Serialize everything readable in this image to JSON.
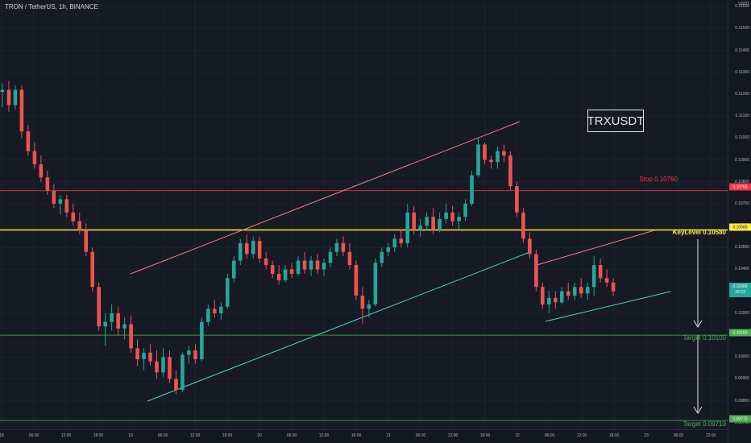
{
  "header": {
    "symbol_title": "TRON / TetherUS, 1h, BINANCE"
  },
  "price_axis": {
    "unit": "USDT",
    "ticks": [
      "0.11600",
      "0.11500",
      "0.11400",
      "0.11300",
      "0.11200",
      "0.11100",
      "0.11000",
      "0.10900",
      "0.10800",
      "0.10700",
      "0.10600",
      "0.10500",
      "0.10400",
      "0.10300",
      "0.10200",
      "0.10100",
      "0.10000",
      "0.09900",
      "0.09800",
      "0.09700"
    ],
    "tags": {
      "stop": "0.10760",
      "key": "0.10580",
      "current_price": "0.10300",
      "current_timer": "42:23",
      "target1": "0.10100",
      "target2": "0.09710"
    }
  },
  "time_axis": {
    "ticks": [
      "18",
      "06:00",
      "12:00",
      "18:00",
      "19",
      "06:00",
      "12:00",
      "18:00",
      "20",
      "06:00",
      "12:00",
      "18:00",
      "21",
      "06:00",
      "12:00",
      "18:00",
      "22",
      "06:00",
      "12:00",
      "18:00",
      "23",
      "06:00",
      "12:00"
    ]
  },
  "levels": {
    "stop_label": "Stop 0.10760",
    "key_label": "KeyLevel 0.10580",
    "target1_label": "Target 0.10100",
    "target2_label": "Target 0.09710"
  },
  "ticker_label": "TRXUSDT",
  "colors": {
    "up": "#26a69a",
    "down": "#ef5350",
    "stop": "#f23645",
    "key": "#ffeb3b",
    "target": "#4caf50",
    "channel_upper": "#f77c80",
    "channel_lower": "#4dd0c8",
    "current_tag": "#26a69a"
  },
  "chart_data": {
    "type": "candlestick",
    "symbol": "TRX/USDT",
    "timeframe": "1h",
    "ylim": [
      0.0967,
      0.1163
    ],
    "candles": [
      [
        0.1121,
        0.1125,
        0.1114,
        0.1122
      ],
      [
        0.1122,
        0.1126,
        0.1112,
        0.1115
      ],
      [
        0.1115,
        0.1124,
        0.1113,
        0.1122
      ],
      [
        0.1122,
        0.1124,
        0.11,
        0.1103
      ],
      [
        0.1103,
        0.1106,
        0.1092,
        0.1094
      ],
      [
        0.1094,
        0.1098,
        0.1086,
        0.1088
      ],
      [
        0.1088,
        0.1092,
        0.108,
        0.1082
      ],
      [
        0.1082,
        0.1085,
        0.1074,
        0.1076
      ],
      [
        0.1076,
        0.1079,
        0.1068,
        0.107
      ],
      [
        0.107,
        0.1074,
        0.1065,
        0.1072
      ],
      [
        0.1072,
        0.1074,
        0.1064,
        0.1066
      ],
      [
        0.1066,
        0.107,
        0.106,
        0.1062
      ],
      [
        0.1062,
        0.1066,
        0.1056,
        0.1058
      ],
      [
        0.1058,
        0.1061,
        0.1046,
        0.1048
      ],
      [
        0.1048,
        0.105,
        0.103,
        0.1032
      ],
      [
        0.1032,
        0.1034,
        0.1012,
        0.1014
      ],
      [
        0.1014,
        0.102,
        0.1005,
        0.1016
      ],
      [
        0.1016,
        0.1024,
        0.1012,
        0.102
      ],
      [
        0.102,
        0.1023,
        0.101,
        0.1013
      ],
      [
        0.1013,
        0.1018,
        0.1008,
        0.1015
      ],
      [
        0.1015,
        0.1019,
        0.1002,
        0.1004
      ],
      [
        0.1004,
        0.1008,
        0.0996,
        0.0999
      ],
      [
        0.0999,
        0.1004,
        0.0994,
        0.1002
      ],
      [
        0.1002,
        0.1006,
        0.0996,
        0.0998
      ],
      [
        0.0998,
        0.1003,
        0.099,
        0.0993
      ],
      [
        0.0993,
        0.1004,
        0.0991,
        0.1
      ],
      [
        0.1,
        0.1003,
        0.0988,
        0.099
      ],
      [
        0.099,
        0.0994,
        0.0983,
        0.0985
      ],
      [
        0.0985,
        0.1002,
        0.0984,
        0.1001
      ],
      [
        0.1001,
        0.1005,
        0.0997,
        0.1003
      ],
      [
        0.1003,
        0.1006,
        0.0997,
        0.0999
      ],
      [
        0.0999,
        0.1018,
        0.0998,
        0.1016
      ],
      [
        0.1016,
        0.1024,
        0.1014,
        0.1022
      ],
      [
        0.1022,
        0.1026,
        0.1018,
        0.102
      ],
      [
        0.102,
        0.1025,
        0.1017,
        0.1023
      ],
      [
        0.1023,
        0.1038,
        0.1022,
        0.1036
      ],
      [
        0.1036,
        0.1046,
        0.1034,
        0.1044
      ],
      [
        0.1044,
        0.1054,
        0.1042,
        0.1052
      ],
      [
        0.1052,
        0.1056,
        0.1045,
        0.1047
      ],
      [
        0.1047,
        0.1055,
        0.1045,
        0.1053
      ],
      [
        0.1053,
        0.1055,
        0.1043,
        0.1045
      ],
      [
        0.1045,
        0.1048,
        0.104,
        0.1042
      ],
      [
        0.1042,
        0.1044,
        0.1036,
        0.1038
      ],
      [
        0.1038,
        0.1042,
        0.1033,
        0.1035
      ],
      [
        0.1035,
        0.1042,
        0.1034,
        0.104
      ],
      [
        0.104,
        0.1043,
        0.1036,
        0.1038
      ],
      [
        0.1038,
        0.1046,
        0.1037,
        0.1044
      ],
      [
        0.1044,
        0.1048,
        0.1038,
        0.104
      ],
      [
        0.104,
        0.1046,
        0.1037,
        0.1044
      ],
      [
        0.1044,
        0.1047,
        0.1038,
        0.104
      ],
      [
        0.104,
        0.1045,
        0.1037,
        0.1043
      ],
      [
        0.1043,
        0.105,
        0.1041,
        0.1048
      ],
      [
        0.1048,
        0.1054,
        0.1046,
        0.1052
      ],
      [
        0.1052,
        0.1055,
        0.1046,
        0.1048
      ],
      [
        0.1048,
        0.1052,
        0.104,
        0.1042
      ],
      [
        0.1042,
        0.1044,
        0.1026,
        0.1028
      ],
      [
        0.1028,
        0.1032,
        0.1015,
        0.1022
      ],
      [
        0.1022,
        0.1026,
        0.1018,
        0.1024
      ],
      [
        0.1024,
        0.1045,
        0.1023,
        0.1043
      ],
      [
        0.1043,
        0.105,
        0.1041,
        0.1048
      ],
      [
        0.1048,
        0.1052,
        0.1046,
        0.105
      ],
      [
        0.105,
        0.1056,
        0.1048,
        0.1054
      ],
      [
        0.1054,
        0.1058,
        0.105,
        0.1052
      ],
      [
        0.1052,
        0.107,
        0.105,
        0.1066
      ],
      [
        0.1066,
        0.1069,
        0.1056,
        0.1058
      ],
      [
        0.1058,
        0.1063,
        0.1055,
        0.106
      ],
      [
        0.106,
        0.1066,
        0.1058,
        0.1064
      ],
      [
        0.1064,
        0.1068,
        0.1056,
        0.1058
      ],
      [
        0.1058,
        0.1066,
        0.1057,
        0.1063
      ],
      [
        0.1063,
        0.107,
        0.1061,
        0.1066
      ],
      [
        0.1066,
        0.1069,
        0.106,
        0.1062
      ],
      [
        0.1062,
        0.1066,
        0.1058,
        0.1064
      ],
      [
        0.1064,
        0.1072,
        0.1062,
        0.107
      ],
      [
        0.107,
        0.1085,
        0.1069,
        0.1083
      ],
      [
        0.1083,
        0.11,
        0.1082,
        0.1097
      ],
      [
        0.1097,
        0.1098,
        0.1088,
        0.109
      ],
      [
        0.109,
        0.1092,
        0.1086,
        0.1089
      ],
      [
        0.1089,
        0.1096,
        0.1086,
        0.1094
      ],
      [
        0.1094,
        0.1097,
        0.1089,
        0.1092
      ],
      [
        0.1092,
        0.1094,
        0.1076,
        0.1078
      ],
      [
        0.1078,
        0.108,
        0.1064,
        0.1066
      ],
      [
        0.1066,
        0.1068,
        0.1052,
        0.1054
      ],
      [
        0.1054,
        0.1057,
        0.1045,
        0.1047
      ],
      [
        0.1047,
        0.1049,
        0.103,
        0.1032
      ],
      [
        0.1032,
        0.1034,
        0.1022,
        0.1024
      ],
      [
        0.1024,
        0.103,
        0.102,
        0.1027
      ],
      [
        0.1027,
        0.103,
        0.1022,
        0.1025
      ],
      [
        0.1025,
        0.1032,
        0.1024,
        0.103
      ],
      [
        0.103,
        0.1034,
        0.1026,
        0.1028
      ],
      [
        0.1028,
        0.1034,
        0.1026,
        0.1032
      ],
      [
        0.1032,
        0.1036,
        0.1027,
        0.1029
      ],
      [
        0.1029,
        0.1034,
        0.1026,
        0.1032
      ],
      [
        0.1032,
        0.1046,
        0.1028,
        0.1042
      ],
      [
        0.1042,
        0.1045,
        0.1034,
        0.1036
      ],
      [
        0.1036,
        0.104,
        0.1032,
        0.1034
      ],
      [
        0.1034,
        0.1036,
        0.1028,
        0.103
      ]
    ],
    "annotations": [
      {
        "type": "hline",
        "price": 0.1076,
        "label": "Stop 0.10760"
      },
      {
        "type": "hline",
        "price": 0.1058,
        "label": "KeyLevel 0.10580"
      },
      {
        "type": "hline",
        "price": 0.101,
        "label": "Target 0.10100"
      },
      {
        "type": "hline",
        "price": 0.0971,
        "label": "Target 0.09710"
      },
      {
        "type": "text_box",
        "text": "TRXUSDT"
      }
    ]
  }
}
